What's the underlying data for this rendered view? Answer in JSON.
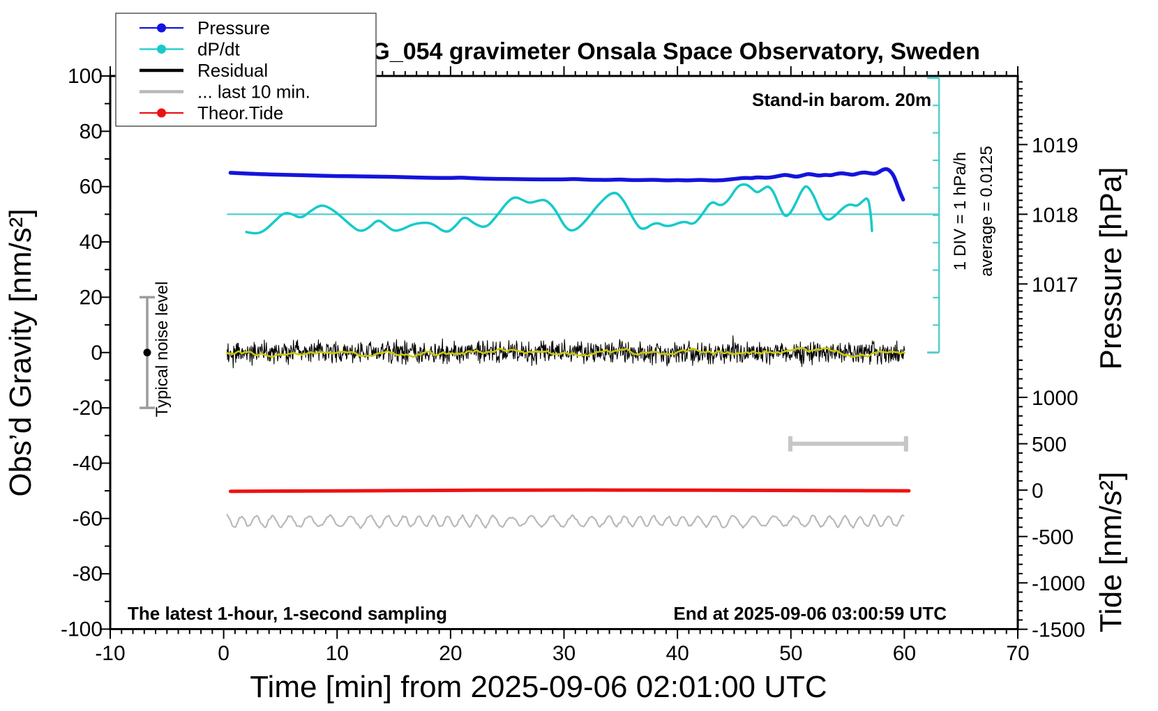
{
  "page": {
    "title": "SCG_054 gravimeter Onsala Space Observatory, Sweden"
  },
  "legend": {
    "items": [
      {
        "label": "Pressure",
        "color": "#1414dc",
        "marker": true,
        "thick": false
      },
      {
        "label": "dP/dt",
        "color": "#17caca",
        "marker": true,
        "thick": false
      },
      {
        "label": "Residual",
        "color": "#000000",
        "marker": false,
        "thick": true
      },
      {
        "label": "... last 10 min.",
        "color": "#b8b8b8",
        "marker": false,
        "thick": true
      },
      {
        "label": "Theor.Tide",
        "color": "#ee1111",
        "marker": true,
        "thick": false
      }
    ]
  },
  "annotations": {
    "stand_in": "Stand-in barom. 20m",
    "div_scale": "1 DIV = 1 hPa/h",
    "average": "average = 0.0125",
    "typical_noise": "Typical noise level",
    "sampling_note": "The latest 1-hour, 1-second sampling",
    "end_at": "End at 2025-09-06 03:00:59 UTC"
  },
  "axes": {
    "x": {
      "label": "Time [min] from 2025-09-06 02:01:00 UTC",
      "range": [
        -10,
        70
      ],
      "major_ticks": [
        -10,
        0,
        10,
        20,
        30,
        40,
        50,
        60,
        70
      ],
      "tick_labels": [
        "-10",
        "0",
        "10",
        "20",
        "30",
        "40",
        "50",
        "60",
        "70"
      ],
      "minor_step": 1
    },
    "gravity": {
      "label": "Obs’d Gravity [nm/s²]",
      "range": [
        -100,
        100
      ],
      "major_ticks": [
        100,
        80,
        60,
        40,
        20,
        0,
        -20,
        -40,
        -60,
        -80,
        -100
      ],
      "tick_labels": [
        "100",
        "80",
        "60",
        "40",
        "20",
        "0",
        "-20",
        "-40",
        "-60",
        "-80",
        "-100"
      ],
      "minor_step": 10
    },
    "pressure": {
      "label": "Pressure [hPa]",
      "major_ticks": [
        1019,
        1018,
        1017
      ],
      "tick_labels": [
        "1019",
        "1018",
        "1017"
      ],
      "minor_step": 0.1,
      "gravity_anchor": {
        "pressure": 1018,
        "gravity": 50
      },
      "gravity_per_hpa": 25.2
    },
    "tide": {
      "label": "Tide [nm/s²]",
      "major_ticks": [
        1000,
        500,
        0,
        -500,
        -1000,
        -1500
      ],
      "tick_labels": [
        "1000",
        "500",
        "0",
        "-500",
        "-1000",
        "-1500"
      ],
      "minor_step": 100,
      "gravity_anchor": {
        "tide": 0,
        "gravity": -49.75
      },
      "gravity_per_unit": 0.03354
    }
  },
  "chart_data": {
    "type": "line",
    "title": "SCG_054 gravimeter Onsala Space Observatory, Sweden",
    "x_unit": "minutes",
    "value_unit": "left-axis gravity equivalent [nm/s²]",
    "series": [
      {
        "name": "Pressure",
        "color": "#1414dc",
        "width": 5.5,
        "points": [
          [
            0.6,
            65.0
          ],
          [
            2,
            64.7
          ],
          [
            4,
            64.4
          ],
          [
            6,
            64.2
          ],
          [
            8,
            64.0
          ],
          [
            10,
            63.8
          ],
          [
            12,
            63.7
          ],
          [
            14,
            63.6
          ],
          [
            16,
            63.4
          ],
          [
            18,
            63.2
          ],
          [
            20,
            63.1
          ],
          [
            21,
            63.3
          ],
          [
            22,
            63.0
          ],
          [
            24,
            62.8
          ],
          [
            26,
            62.7
          ],
          [
            28,
            62.6
          ],
          [
            30,
            62.6
          ],
          [
            31,
            62.8
          ],
          [
            32,
            62.5
          ],
          [
            34,
            62.4
          ],
          [
            35,
            62.6
          ],
          [
            36,
            62.3
          ],
          [
            38,
            62.5
          ],
          [
            39,
            62.2
          ],
          [
            40,
            62.4
          ],
          [
            41,
            62.2
          ],
          [
            42,
            62.5
          ],
          [
            43,
            62.2
          ],
          [
            44,
            62.3
          ],
          [
            45,
            62.8
          ],
          [
            46,
            63.2
          ],
          [
            46.5,
            63.0
          ],
          [
            47,
            63.4
          ],
          [
            48,
            63.1
          ],
          [
            49,
            63.9
          ],
          [
            49.5,
            64.3
          ],
          [
            50,
            63.9
          ],
          [
            50.5,
            63.5
          ],
          [
            51,
            64.0
          ],
          [
            51.5,
            64.6
          ],
          [
            52,
            64.3
          ],
          [
            52.5,
            63.9
          ],
          [
            53,
            64.3
          ],
          [
            53.5,
            64.0
          ],
          [
            54,
            64.6
          ],
          [
            54.5,
            64.9
          ],
          [
            55,
            64.5
          ],
          [
            55.5,
            64.2
          ],
          [
            56,
            64.9
          ],
          [
            56.5,
            65.2
          ],
          [
            57,
            64.8
          ],
          [
            57.5,
            64.6
          ],
          [
            58,
            65.9
          ],
          [
            58.3,
            66.4
          ],
          [
            58.6,
            66.2
          ],
          [
            59,
            64.5
          ],
          [
            59.3,
            61.5
          ],
          [
            59.6,
            58.0
          ],
          [
            59.9,
            55.3
          ]
        ]
      },
      {
        "name": "dP/dt",
        "color": "#17caca",
        "width": 3.5,
        "zero_level_gravity": 50,
        "points": [
          [
            2,
            43.6
          ],
          [
            2.8,
            42.8
          ],
          [
            3.6,
            44.0
          ],
          [
            4.5,
            47.5
          ],
          [
            5.3,
            50.6
          ],
          [
            6.0,
            50.2
          ],
          [
            6.8,
            48.4
          ],
          [
            7.6,
            51.0
          ],
          [
            8.6,
            53.6
          ],
          [
            9.5,
            52.0
          ],
          [
            10.4,
            49.0
          ],
          [
            11.2,
            46.0
          ],
          [
            12.0,
            43.6
          ],
          [
            12.8,
            45.0
          ],
          [
            13.6,
            48.3
          ],
          [
            14.3,
            46.0
          ],
          [
            15.0,
            43.8
          ],
          [
            15.8,
            44.6
          ],
          [
            16.6,
            46.3
          ],
          [
            17.5,
            47.0
          ],
          [
            18.4,
            46.8
          ],
          [
            19.6,
            43.0
          ],
          [
            20.4,
            45.5
          ],
          [
            21.2,
            49.6
          ],
          [
            22.1,
            46.5
          ],
          [
            23.1,
            44.9
          ],
          [
            24.0,
            49.0
          ],
          [
            25.0,
            54.5
          ],
          [
            25.7,
            56.5
          ],
          [
            26.5,
            54.8
          ],
          [
            27.0,
            54.0
          ],
          [
            27.8,
            55.0
          ],
          [
            28.4,
            55.3
          ],
          [
            29.2,
            52.0
          ],
          [
            30.2,
            44.4
          ],
          [
            31.0,
            44.0
          ],
          [
            32.0,
            48.0
          ],
          [
            33.0,
            53.5
          ],
          [
            34.4,
            58.8
          ],
          [
            35.3,
            55.0
          ],
          [
            36.2,
            47.5
          ],
          [
            36.9,
            43.9
          ],
          [
            38.1,
            47.4
          ],
          [
            39.1,
            45.2
          ],
          [
            40.6,
            47.7
          ],
          [
            41.4,
            46.0
          ],
          [
            42.2,
            50.0
          ],
          [
            43.0,
            55.0
          ],
          [
            43.8,
            52.8
          ],
          [
            44.5,
            55.0
          ],
          [
            45.3,
            60.3
          ],
          [
            46.0,
            61.0
          ],
          [
            46.5,
            59.6
          ],
          [
            47.0,
            57.6
          ],
          [
            47.5,
            59.0
          ],
          [
            48.0,
            60.4
          ],
          [
            48.5,
            58.0
          ],
          [
            49.0,
            52.6
          ],
          [
            49.5,
            48.8
          ],
          [
            50.0,
            50.6
          ],
          [
            50.5,
            54.6
          ],
          [
            51.0,
            59.0
          ],
          [
            51.4,
            60.6
          ],
          [
            52.0,
            57.0
          ],
          [
            52.6,
            50.6
          ],
          [
            53.2,
            47.6
          ],
          [
            53.8,
            49.0
          ],
          [
            54.6,
            52.4
          ],
          [
            55.2,
            53.8
          ],
          [
            55.8,
            52.8
          ],
          [
            56.3,
            54.6
          ],
          [
            56.8,
            56.4
          ],
          [
            57.05,
            50.0
          ],
          [
            57.15,
            44.0
          ]
        ]
      },
      {
        "name": "Residual",
        "color": "#000000",
        "type": "noise",
        "center": 0,
        "amplitude": 5,
        "step": 0.045,
        "t_range": [
          0.3,
          60.05
        ],
        "seed": 20250906,
        "width": 1.1
      },
      {
        "name": "Residual smoothed",
        "color": "#c9c900",
        "type": "smooth-noise",
        "center": 0,
        "amplitude": 1.6,
        "step": 0.15,
        "t_range": [
          0.3,
          60.05
        ],
        "seed": 77,
        "width": 2.6
      },
      {
        "name": "... last 10 min.",
        "color": "#b8b8b8",
        "type": "wiggle",
        "center": -61,
        "amplitude": 2.4,
        "period_min": 1.5,
        "step": 0.12,
        "t_range": [
          0.3,
          60.0
        ],
        "seed": 5,
        "width": 2.2
      },
      {
        "name": "Theor.Tide",
        "color": "#ee1111",
        "width": 5,
        "points": [
          [
            0.6,
            -50.2
          ],
          [
            15,
            -49.9
          ],
          [
            30,
            -49.7
          ],
          [
            45,
            -49.8
          ],
          [
            60.4,
            -50.0
          ]
        ]
      }
    ],
    "dpdt_scale_bar": {
      "t": 63.06,
      "gravity_top": 99.3,
      "gravity_bottom": 0,
      "divisions": 10,
      "div_value": "1 hPa/h",
      "average": 0.0125,
      "color": "#55cccc"
    },
    "zero_line": {
      "gravity": 50,
      "t_start": 0.3,
      "color": "#55cccc"
    },
    "last10_bar": {
      "t_start": 49.95,
      "t_end": 60.15,
      "gravity": -33.0,
      "color": "#c6c6c6"
    },
    "noise_bar": {
      "t": -6.74,
      "gravity_center": 0,
      "gravity_halfspan": 20,
      "color": "#9c9c9c"
    }
  }
}
